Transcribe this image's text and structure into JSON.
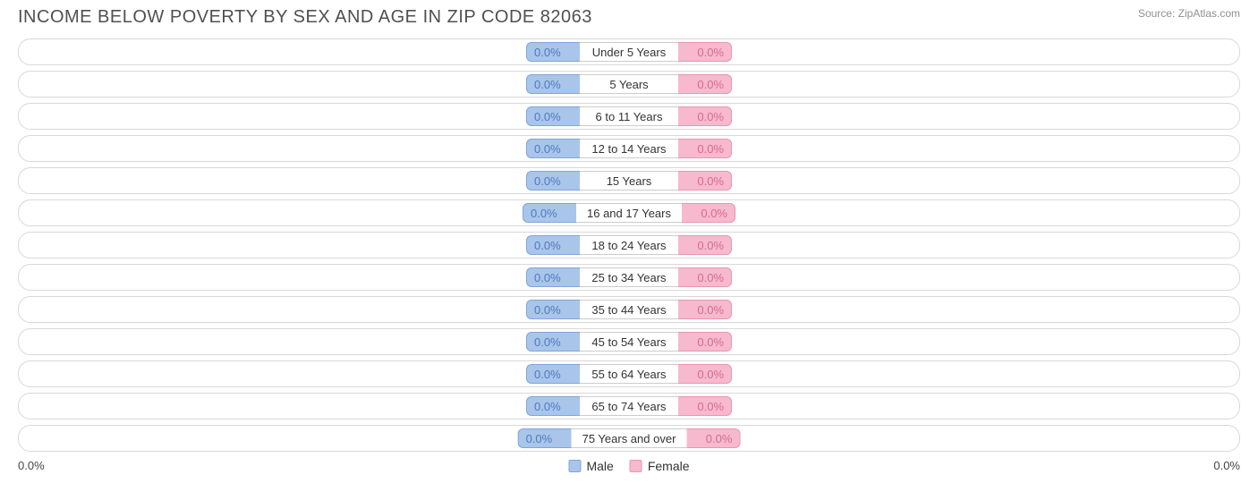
{
  "title": "INCOME BELOW POVERTY BY SEX AND AGE IN ZIP CODE 82063",
  "source": "Source: ZipAtlas.com",
  "chart": {
    "type": "diverging-bar",
    "male_color": "#a9c5ea",
    "male_border": "#7fa6d9",
    "male_text": "#4f7abf",
    "female_color": "#f6b9cd",
    "female_border": "#ec94b3",
    "female_text": "#d96a93",
    "track_border": "#d8d8d8",
    "track_bg": "#ffffff",
    "label_border": "#cccccc",
    "background_color": "#ffffff",
    "value_fontsize": 13,
    "label_fontsize": 13,
    "categories": [
      "Under 5 Years",
      "5 Years",
      "6 to 11 Years",
      "12 to 14 Years",
      "15 Years",
      "16 and 17 Years",
      "18 to 24 Years",
      "25 to 34 Years",
      "35 to 44 Years",
      "45 to 54 Years",
      "55 to 64 Years",
      "65 to 74 Years",
      "75 Years and over"
    ],
    "male_values": [
      "0.0%",
      "0.0%",
      "0.0%",
      "0.0%",
      "0.0%",
      "0.0%",
      "0.0%",
      "0.0%",
      "0.0%",
      "0.0%",
      "0.0%",
      "0.0%",
      "0.0%"
    ],
    "female_values": [
      "0.0%",
      "0.0%",
      "0.0%",
      "0.0%",
      "0.0%",
      "0.0%",
      "0.0%",
      "0.0%",
      "0.0%",
      "0.0%",
      "0.0%",
      "0.0%",
      "0.0%"
    ]
  },
  "axis": {
    "left_label": "0.0%",
    "right_label": "0.0%"
  },
  "legend": {
    "male_label": "Male",
    "female_label": "Female"
  }
}
